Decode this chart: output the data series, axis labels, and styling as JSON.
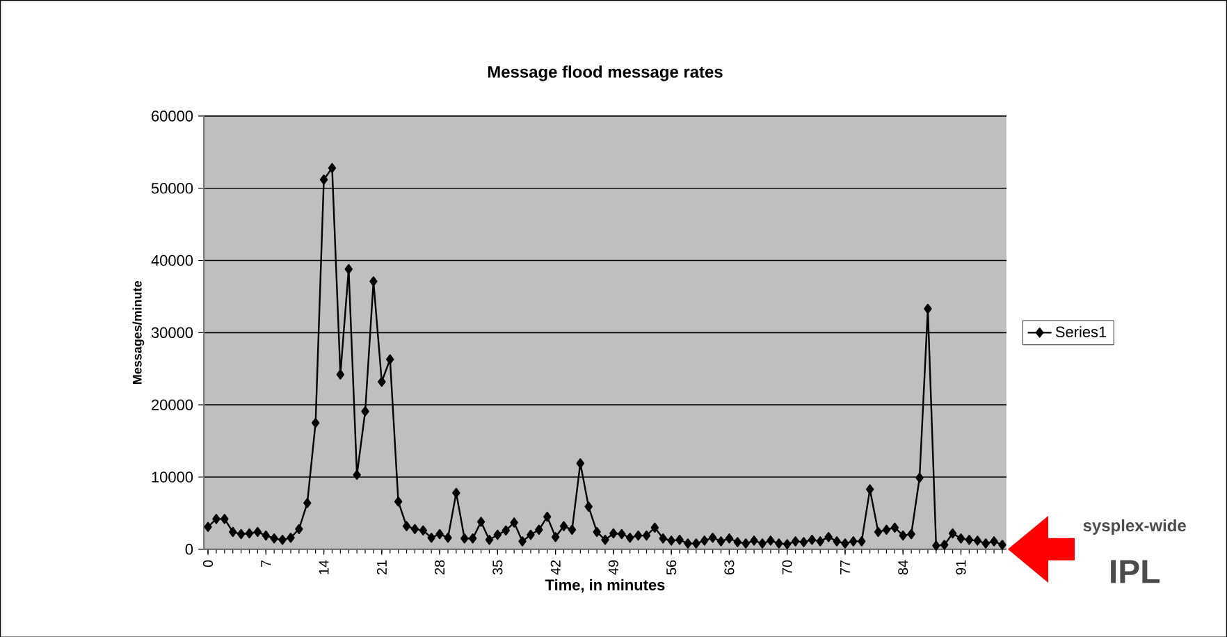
{
  "chart_data": {
    "type": "line",
    "title": "Message flood message rates",
    "xlabel": "Time, in minutes",
    "ylabel": "Messages/minute",
    "categories": [
      "0",
      null,
      null,
      null,
      null,
      null,
      null,
      "7",
      null,
      null,
      null,
      null,
      null,
      null,
      "14",
      null,
      null,
      null,
      null,
      null,
      null,
      "21",
      null,
      null,
      null,
      null,
      null,
      null,
      "28",
      null,
      null,
      null,
      null,
      null,
      null,
      "35",
      null,
      null,
      null,
      null,
      null,
      null,
      "42",
      null,
      null,
      null,
      null,
      null,
      null,
      "49",
      null,
      null,
      null,
      null,
      null,
      null,
      "56",
      null,
      null,
      null,
      null,
      null,
      null,
      "63",
      null,
      null,
      null,
      null,
      null,
      null,
      "70",
      null,
      null,
      null,
      null,
      null,
      null,
      "77",
      null,
      null,
      null,
      null,
      null,
      null,
      "84",
      null,
      null,
      null,
      null,
      null,
      null,
      "91",
      null,
      null,
      null,
      null,
      null
    ],
    "series": [
      {
        "name": "Series1",
        "color": "#000000",
        "values": [
          3100,
          4200,
          4200,
          2400,
          2100,
          2200,
          2400,
          1900,
          1500,
          1300,
          1600,
          2800,
          6400,
          17500,
          51200,
          52800,
          24200,
          38800,
          10300,
          19100,
          37100,
          23200,
          26300,
          6600,
          3200,
          2800,
          2600,
          1600,
          2100,
          1600,
          7800,
          1500,
          1500,
          3800,
          1300,
          2000,
          2600,
          3700,
          1100,
          2000,
          2700,
          4500,
          1700,
          3200,
          2700,
          11900,
          5900,
          2400,
          1300,
          2200,
          2100,
          1600,
          1900,
          1900,
          3000,
          1500,
          1200,
          1300,
          800,
          800,
          1200,
          1600,
          1100,
          1500,
          1000,
          800,
          1200,
          800,
          1200,
          800,
          700,
          1100,
          1000,
          1300,
          1100,
          1700,
          1100,
          800,
          1100,
          1100,
          8300,
          2400,
          2700,
          3000,
          1900,
          2100,
          9900,
          33300,
          500,
          600,
          2200,
          1500,
          1300,
          1200,
          800,
          1100,
          600
        ]
      }
    ],
    "ylim": [
      0,
      60000
    ],
    "yticks": [
      0,
      10000,
      20000,
      30000,
      40000,
      50000,
      60000
    ],
    "grid": "y",
    "legend": "right",
    "marker": "diamond",
    "line_style": "solid",
    "annotations": [
      "sysplex-wide",
      "IPL"
    ]
  }
}
